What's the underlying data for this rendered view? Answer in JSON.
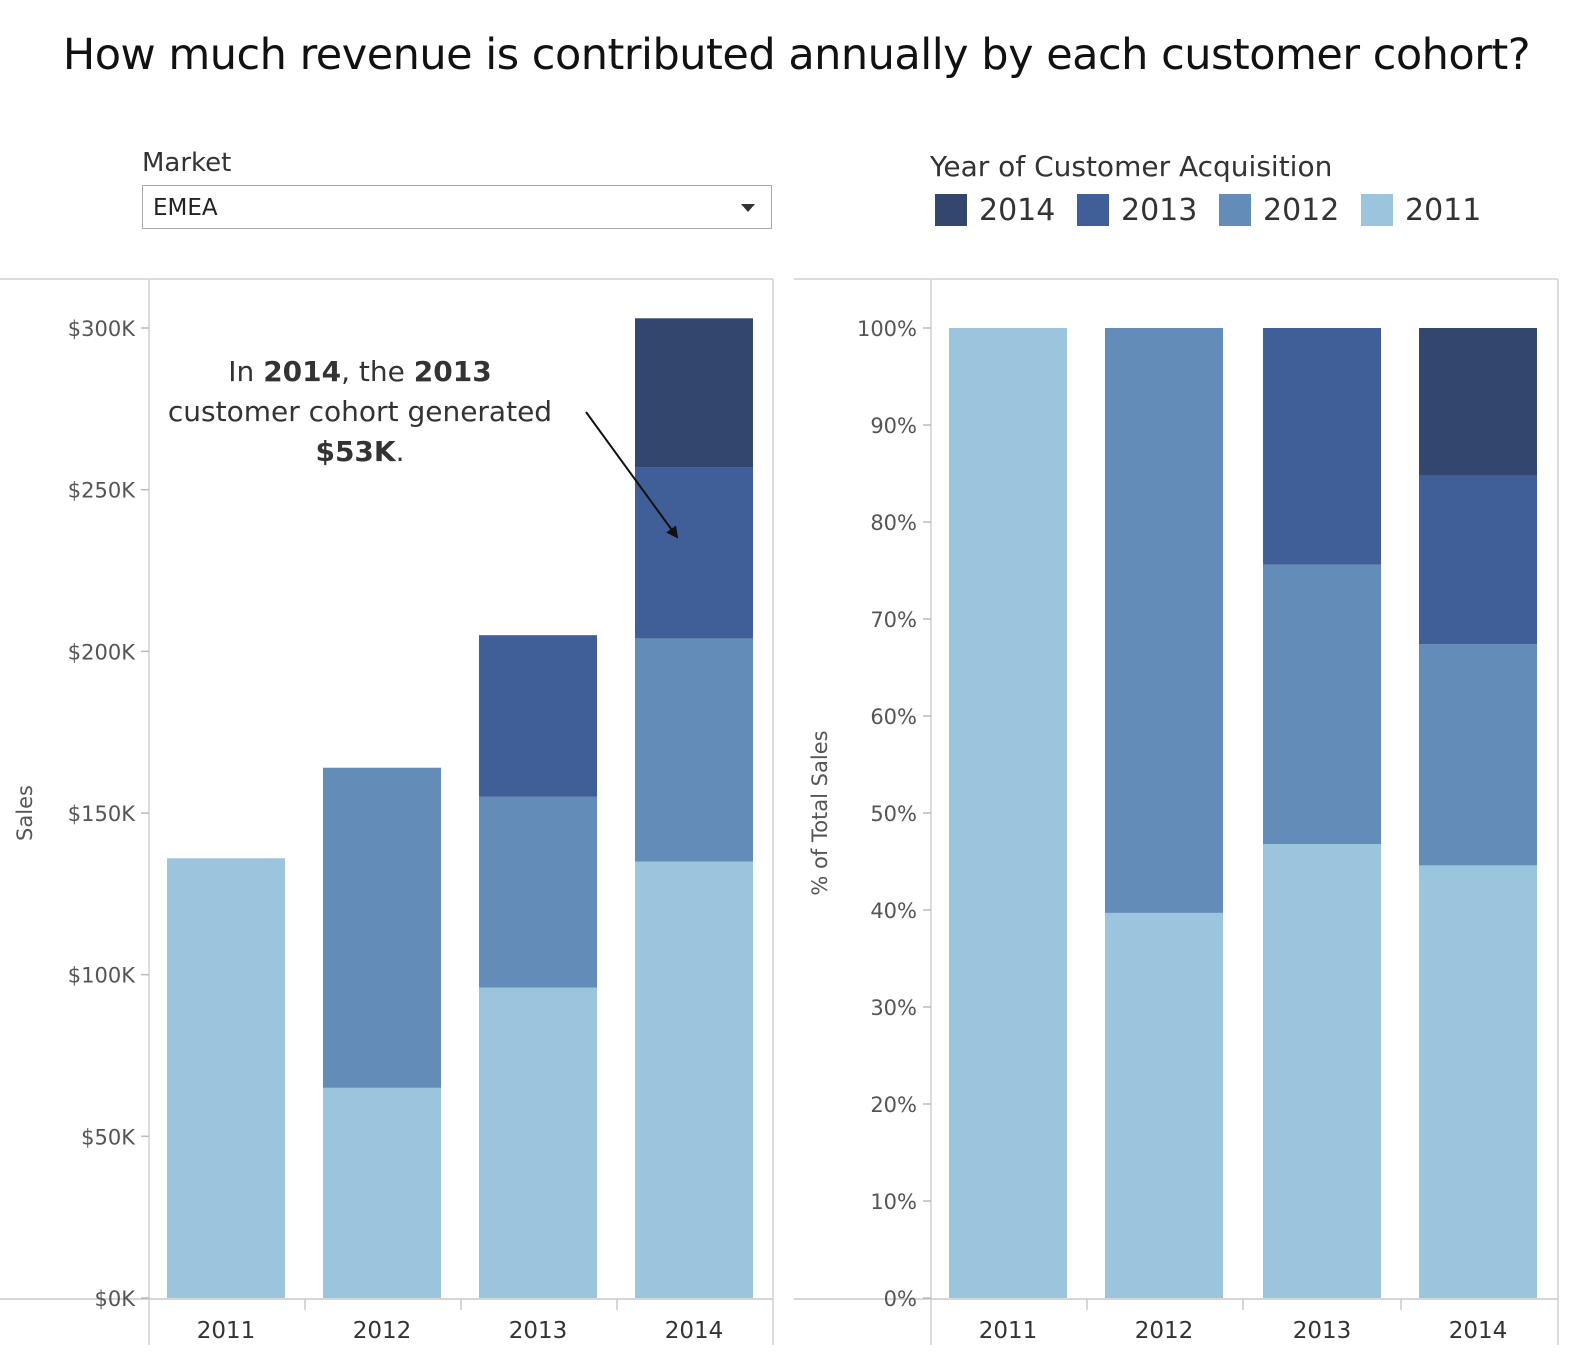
{
  "title": "How much revenue is contributed annually by each customer cohort?",
  "filter": {
    "label": "Market",
    "value": "EMEA"
  },
  "legend": {
    "title": "Year of Customer Acquisition",
    "items": [
      {
        "label": "2014",
        "color": "#33476e"
      },
      {
        "label": "2013",
        "color": "#405f98"
      },
      {
        "label": "2012",
        "color": "#638db8"
      },
      {
        "label": "2011",
        "color": "#9ac5dd"
      }
    ]
  },
  "annotation": {
    "part1": "In ",
    "year_a": "2014",
    "part2": ", the ",
    "year_b": "2013",
    "part3": " customer cohort generated ",
    "amount": "$53K",
    "part4": "."
  },
  "chart_data": [
    {
      "type": "bar",
      "stacked": true,
      "categories": [
        "2011",
        "2012",
        "2013",
        "2014"
      ],
      "ylabel": "Sales",
      "ylim": [
        0,
        300000
      ],
      "yticks": [
        "$0K",
        "$50K",
        "$100K",
        "$150K",
        "$200K",
        "$250K",
        "$300K"
      ],
      "series": [
        {
          "name": "2011",
          "color": "#9ac5dd",
          "values": [
            136000,
            65000,
            96000,
            135000
          ]
        },
        {
          "name": "2012",
          "color": "#638db8",
          "values": [
            0,
            99000,
            59000,
            69000
          ]
        },
        {
          "name": "2013",
          "color": "#405f98",
          "values": [
            0,
            0,
            50000,
            53000
          ]
        },
        {
          "name": "2014",
          "color": "#33476e",
          "values": [
            0,
            0,
            0,
            46000
          ]
        }
      ]
    },
    {
      "type": "bar",
      "stacked": true,
      "categories": [
        "2011",
        "2012",
        "2013",
        "2014"
      ],
      "ylabel": "% of Total Sales",
      "ylim": [
        0,
        100
      ],
      "yticks": [
        "0%",
        "10%",
        "20%",
        "30%",
        "40%",
        "50%",
        "60%",
        "70%",
        "80%",
        "90%",
        "100%"
      ],
      "series": [
        {
          "name": "2011",
          "color": "#9ac5dd",
          "values": [
            100,
            39.7,
            46.8,
            44.6
          ]
        },
        {
          "name": "2012",
          "color": "#638db8",
          "values": [
            0,
            60.3,
            28.8,
            22.8
          ]
        },
        {
          "name": "2013",
          "color": "#405f98",
          "values": [
            0,
            0,
            24.4,
            17.4
          ]
        },
        {
          "name": "2014",
          "color": "#33476e",
          "values": [
            0,
            0,
            0,
            15.2
          ]
        }
      ]
    }
  ]
}
